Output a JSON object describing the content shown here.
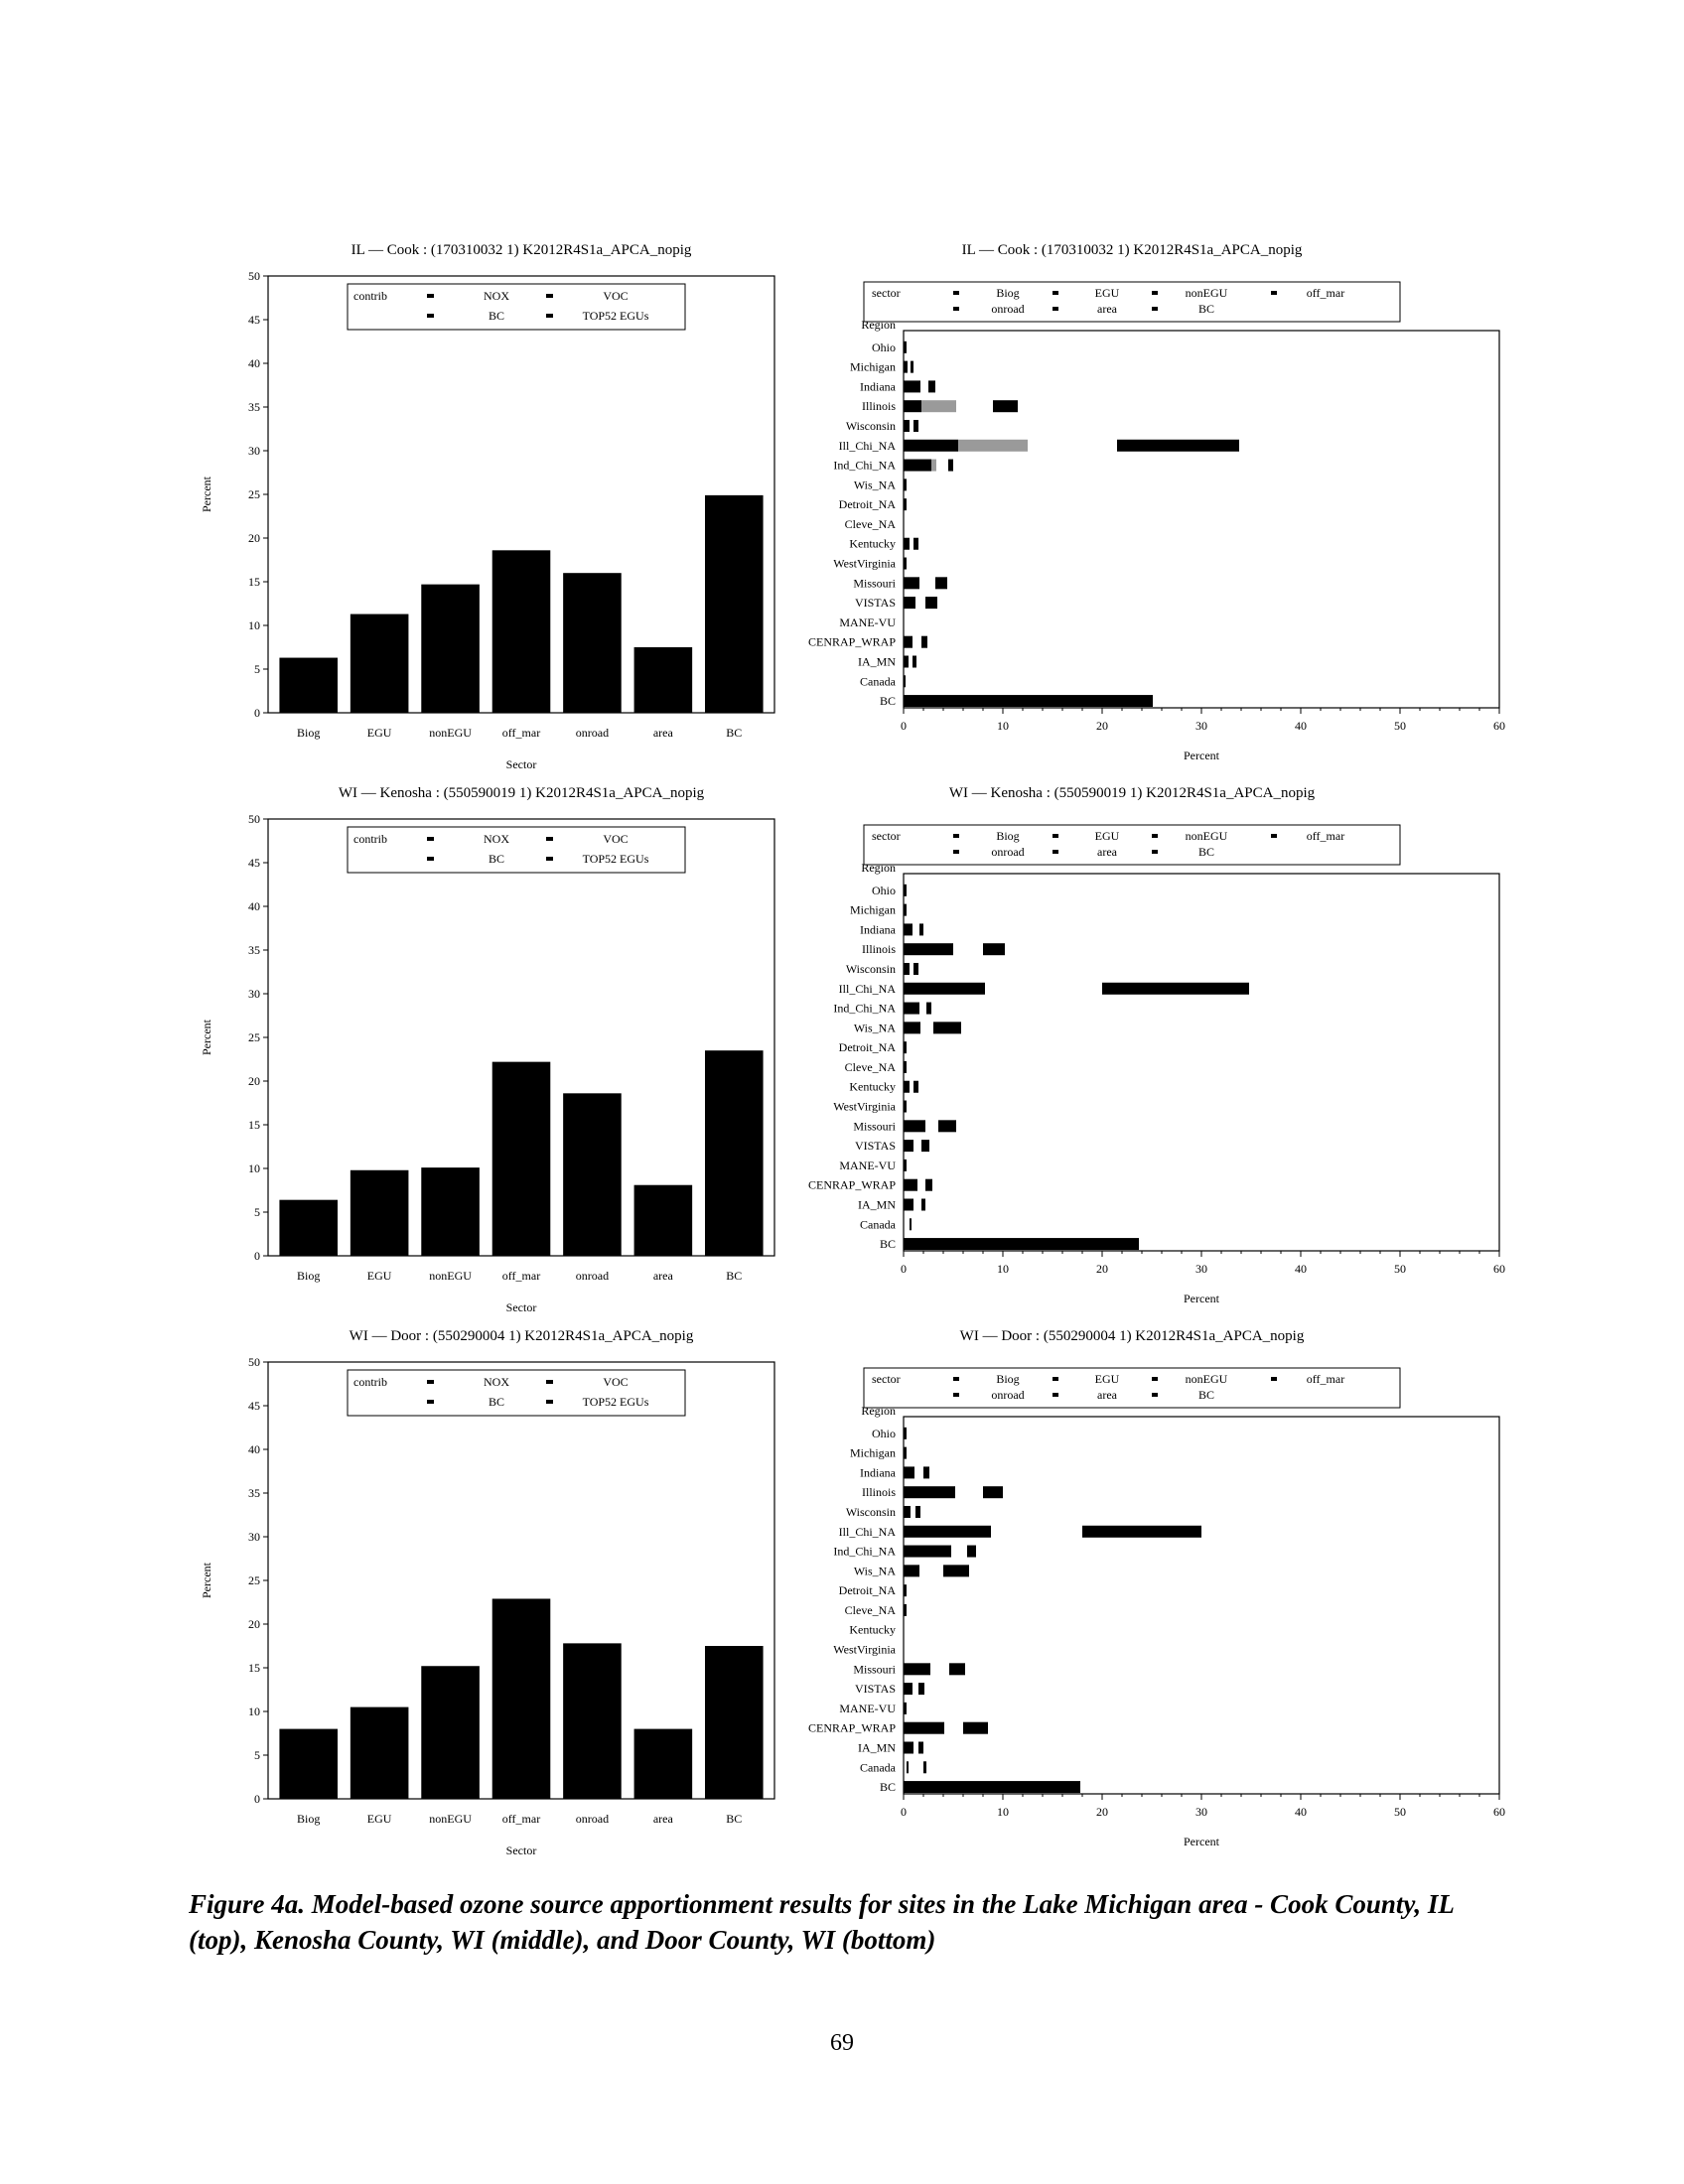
{
  "caption": "Figure 4a. Model-based ozone source apportionment results for sites in the Lake Michigan area - Cook County, IL (top), Kenosha County, WI (middle), and Door County, WI (bottom)",
  "page_number": "69",
  "chart_data": [
    {
      "type": "bar",
      "title": "IL — Cook : (170310032 1) K2012R4S1a_APCA_nopig",
      "xlabel": "Sector",
      "ylabel": "Percent",
      "ylim": [
        0,
        50
      ],
      "yticks": [
        0,
        5,
        10,
        15,
        20,
        25,
        30,
        35,
        40,
        45,
        50
      ],
      "categories": [
        "Biog",
        "EGU",
        "nonEGU",
        "off_mar",
        "onroad",
        "area",
        "BC"
      ],
      "values": [
        6.3,
        11.3,
        14.7,
        18.6,
        16.0,
        7.5,
        24.9
      ],
      "legend": {
        "position": "top",
        "title": "contrib",
        "entries": [
          "NOX",
          "VOC",
          "BC",
          "TOP52 EGUs"
        ]
      }
    },
    {
      "type": "bar",
      "orientation": "horizontal",
      "stacked": true,
      "title": "IL — Cook : (170310032 1) K2012R4S1a_APCA_nopig",
      "xlabel": "Percent",
      "ylabel": "Region",
      "xlim": [
        0,
        60
      ],
      "xticks": [
        0,
        10,
        20,
        30,
        40,
        50,
        60
      ],
      "categories": [
        "Ohio",
        "Michigan",
        "Indiana",
        "Illinois",
        "Wisconsin",
        "Ill_Chi_NA",
        "Ind_Chi_NA",
        "Wis_NA",
        "Detroit_NA",
        "Cleve_NA",
        "Kentucky",
        "WestVirginia",
        "Missouri",
        "VISTAS",
        "MANE-VU",
        "CENRAP_WRAP",
        "IA_MN",
        "Canada",
        "BC"
      ],
      "segments": [
        [
          [
            0,
            0.3
          ]
        ],
        [
          [
            0,
            0.4
          ],
          [
            0.7,
            1.0
          ]
        ],
        [
          [
            0,
            1.7
          ],
          [
            2.5,
            3.2
          ]
        ],
        [
          [
            0,
            1.8
          ],
          [
            1.8,
            5.3,
            "light"
          ],
          [
            9.0,
            11.5
          ]
        ],
        [
          [
            0,
            0.6
          ],
          [
            1.0,
            1.5
          ]
        ],
        [
          [
            0,
            5.5
          ],
          [
            5.5,
            12.5,
            "light"
          ],
          [
            21.5,
            33.8
          ]
        ],
        [
          [
            0,
            2.8
          ],
          [
            2.8,
            3.3,
            "light"
          ],
          [
            4.5,
            5.0
          ]
        ],
        [
          [
            0,
            0.3
          ]
        ],
        [
          [
            0,
            0.3
          ]
        ],
        [],
        [
          [
            0,
            0.6
          ],
          [
            1.0,
            1.5
          ]
        ],
        [
          [
            0,
            0.3
          ]
        ],
        [
          [
            0,
            1.6
          ],
          [
            3.2,
            4.4
          ]
        ],
        [
          [
            0,
            1.2
          ],
          [
            2.2,
            3.4
          ]
        ],
        [],
        [
          [
            0,
            0.9
          ],
          [
            1.8,
            2.4
          ]
        ],
        [
          [
            0,
            0.5
          ],
          [
            0.9,
            1.3
          ]
        ],
        [
          [
            0,
            0.2
          ]
        ],
        [
          [
            0,
            25.1
          ]
        ]
      ],
      "legend": {
        "position": "top",
        "title": "sector",
        "entries": [
          "Biog",
          "EGU",
          "nonEGU",
          "off_mar",
          "onroad",
          "area",
          "BC"
        ]
      }
    },
    {
      "type": "bar",
      "title": "WI — Kenosha : (550590019 1) K2012R4S1a_APCA_nopig",
      "xlabel": "Sector",
      "ylabel": "Percent",
      "ylim": [
        0,
        50
      ],
      "yticks": [
        0,
        5,
        10,
        15,
        20,
        25,
        30,
        35,
        40,
        45,
        50
      ],
      "categories": [
        "Biog",
        "EGU",
        "nonEGU",
        "off_mar",
        "onroad",
        "area",
        "BC"
      ],
      "values": [
        6.4,
        9.8,
        10.1,
        22.2,
        18.6,
        8.1,
        23.5
      ],
      "legend": {
        "position": "top",
        "title": "contrib",
        "entries": [
          "NOX",
          "VOC",
          "BC",
          "TOP52 EGUs"
        ]
      }
    },
    {
      "type": "bar",
      "orientation": "horizontal",
      "stacked": true,
      "title": "WI — Kenosha : (550590019 1) K2012R4S1a_APCA_nopig",
      "xlabel": "Percent",
      "ylabel": "Region",
      "xlim": [
        0,
        60
      ],
      "xticks": [
        0,
        10,
        20,
        30,
        40,
        50,
        60
      ],
      "categories": [
        "Ohio",
        "Michigan",
        "Indiana",
        "Illinois",
        "Wisconsin",
        "Ill_Chi_NA",
        "Ind_Chi_NA",
        "Wis_NA",
        "Detroit_NA",
        "Cleve_NA",
        "Kentucky",
        "WestVirginia",
        "Missouri",
        "VISTAS",
        "MANE-VU",
        "CENRAP_WRAP",
        "IA_MN",
        "Canada",
        "BC"
      ],
      "segments": [
        [
          [
            0,
            0.3
          ]
        ],
        [
          [
            0,
            0.3
          ]
        ],
        [
          [
            0,
            0.9
          ],
          [
            1.6,
            2.0
          ]
        ],
        [
          [
            0,
            5.0
          ],
          [
            8.0,
            10.2
          ]
        ],
        [
          [
            0,
            0.6
          ],
          [
            1.0,
            1.5
          ]
        ],
        [
          [
            0,
            8.2
          ],
          [
            20.0,
            34.8
          ]
        ],
        [
          [
            0,
            1.6
          ],
          [
            2.3,
            2.8
          ]
        ],
        [
          [
            0,
            1.7
          ],
          [
            3.0,
            5.8
          ]
        ],
        [
          [
            0,
            0.3
          ]
        ],
        [
          [
            0,
            0.3
          ]
        ],
        [
          [
            0,
            0.6
          ],
          [
            1.0,
            1.5
          ]
        ],
        [
          [
            0,
            0.3
          ]
        ],
        [
          [
            0,
            2.2
          ],
          [
            3.5,
            5.3
          ]
        ],
        [
          [
            0,
            1.0
          ],
          [
            1.8,
            2.6
          ]
        ],
        [
          [
            0,
            0.3
          ]
        ],
        [
          [
            0,
            1.4
          ],
          [
            2.2,
            2.9
          ]
        ],
        [
          [
            0,
            1.0
          ],
          [
            1.8,
            2.2
          ]
        ],
        [
          [
            0.6,
            0.8
          ]
        ],
        [
          [
            0,
            23.7
          ]
        ]
      ],
      "legend": {
        "position": "top",
        "title": "sector",
        "entries": [
          "Biog",
          "EGU",
          "nonEGU",
          "off_mar",
          "onroad",
          "area",
          "BC"
        ]
      }
    },
    {
      "type": "bar",
      "title": "WI — Door : (550290004 1) K2012R4S1a_APCA_nopig",
      "xlabel": "Sector",
      "ylabel": "Percent",
      "ylim": [
        0,
        50
      ],
      "yticks": [
        0,
        5,
        10,
        15,
        20,
        25,
        30,
        35,
        40,
        45,
        50
      ],
      "categories": [
        "Biog",
        "EGU",
        "nonEGU",
        "off_mar",
        "onroad",
        "area",
        "BC"
      ],
      "values": [
        8.0,
        10.5,
        15.2,
        22.9,
        17.8,
        8.0,
        17.5
      ],
      "legend": {
        "position": "top",
        "title": "contrib",
        "entries": [
          "NOX",
          "VOC",
          "BC",
          "TOP52 EGUs"
        ]
      }
    },
    {
      "type": "bar",
      "orientation": "horizontal",
      "stacked": true,
      "title": "WI — Door : (550290004 1) K2012R4S1a_APCA_nopig",
      "xlabel": "Percent",
      "ylabel": "Region",
      "xlim": [
        0,
        60
      ],
      "xticks": [
        0,
        10,
        20,
        30,
        40,
        50,
        60
      ],
      "categories": [
        "Ohio",
        "Michigan",
        "Indiana",
        "Illinois",
        "Wisconsin",
        "Ill_Chi_NA",
        "Ind_Chi_NA",
        "Wis_NA",
        "Detroit_NA",
        "Cleve_NA",
        "Kentucky",
        "WestVirginia",
        "Missouri",
        "VISTAS",
        "MANE-VU",
        "CENRAP_WRAP",
        "IA_MN",
        "Canada",
        "BC"
      ],
      "segments": [
        [
          [
            0,
            0.3
          ]
        ],
        [
          [
            0,
            0.3
          ]
        ],
        [
          [
            0,
            1.1
          ],
          [
            2.0,
            2.6
          ]
        ],
        [
          [
            0,
            5.2
          ],
          [
            8.0,
            10.0
          ]
        ],
        [
          [
            0,
            0.7
          ],
          [
            1.2,
            1.7
          ]
        ],
        [
          [
            0,
            8.8
          ],
          [
            18.0,
            30.0
          ]
        ],
        [
          [
            0,
            4.8
          ],
          [
            6.4,
            7.3
          ]
        ],
        [
          [
            0,
            1.6
          ],
          [
            4.0,
            6.6
          ]
        ],
        [
          [
            0,
            0.3
          ]
        ],
        [
          [
            0,
            0.3
          ]
        ],
        [],
        [],
        [
          [
            0,
            2.7
          ],
          [
            4.6,
            6.2
          ]
        ],
        [
          [
            0,
            0.9
          ],
          [
            1.5,
            2.1
          ]
        ],
        [
          [
            0,
            0.3
          ]
        ],
        [
          [
            0,
            4.1
          ],
          [
            6.0,
            8.5
          ]
        ],
        [
          [
            0,
            1.0
          ],
          [
            1.5,
            2.0
          ]
        ],
        [
          [
            0.3,
            0.5
          ],
          [
            2.0,
            2.3
          ]
        ],
        [
          [
            0,
            17.8
          ]
        ]
      ],
      "legend": {
        "position": "top",
        "title": "sector",
        "entries": [
          "Biog",
          "EGU",
          "nonEGU",
          "off_mar",
          "onroad",
          "area",
          "BC"
        ]
      }
    }
  ]
}
